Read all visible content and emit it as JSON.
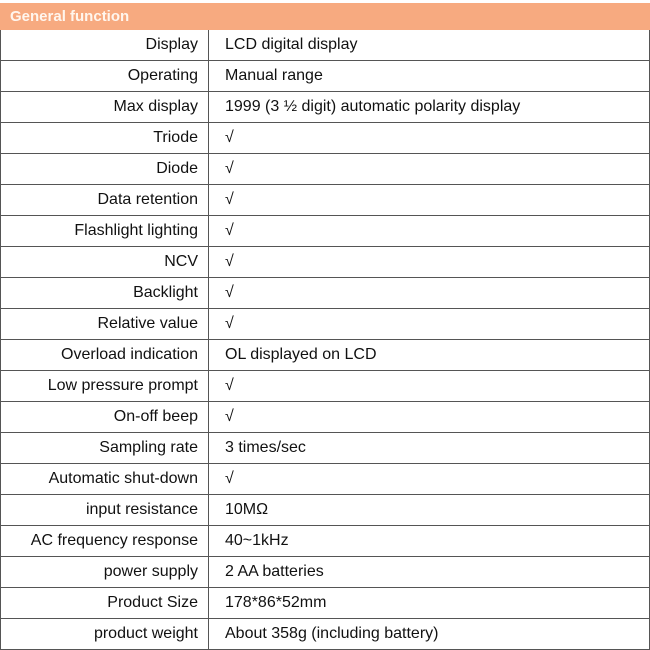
{
  "header": {
    "title": "General function",
    "color": "#f7aa80"
  },
  "rows": [
    {
      "label": "Display",
      "value": "LCD digital display"
    },
    {
      "label": "Operating",
      "value": "Manual range"
    },
    {
      "label": "Max display",
      "value": "1999 (3 ½ digit) automatic polarity display"
    },
    {
      "label": "Triode",
      "value": "√"
    },
    {
      "label": "Diode",
      "value": "√"
    },
    {
      "label": "Data retention",
      "value": "√"
    },
    {
      "label": "Flashlight lighting",
      "value": "√"
    },
    {
      "label": "NCV",
      "value": "√"
    },
    {
      "label": "Backlight",
      "value": "√"
    },
    {
      "label": "Relative value",
      "value": "√"
    },
    {
      "label": "Overload indication",
      "value": "OL displayed on LCD"
    },
    {
      "label": "Low pressure prompt",
      "value": "√"
    },
    {
      "label": "On-off beep",
      "value": "√"
    },
    {
      "label": "Sampling rate",
      "value": "3 times/sec"
    },
    {
      "label": "Automatic shut-down",
      "value": "√"
    },
    {
      "label": "input resistance",
      "value": "10MΩ"
    },
    {
      "label": "AC frequency response",
      "value": "40~1kHz"
    },
    {
      "label": "power supply",
      "value": "2 AA batteries"
    },
    {
      "label": "Product Size",
      "value": "178*86*52mm"
    },
    {
      "label": "product weight",
      "value": "About 358g (including battery)"
    }
  ]
}
